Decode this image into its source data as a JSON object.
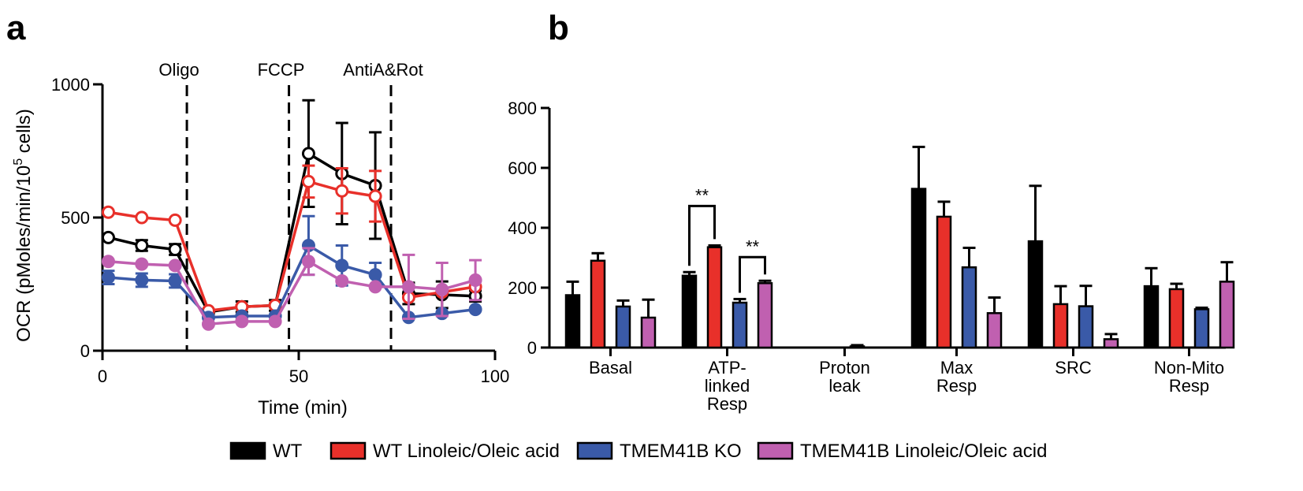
{
  "figure": {
    "panel_a_letter": "a",
    "panel_b_letter": "b"
  },
  "colors": {
    "WT": "#000000",
    "WT_LO": "#e8302a",
    "KO": "#3a5aa8",
    "KO_LO": "#c060b0"
  },
  "chart_data": [
    {
      "type": "line",
      "panel": "a",
      "xlabel": "Time (min)",
      "ylabel": "OCR (pMoles/min/10",
      "ylabel_sup": "5",
      "ylabel_end": " cells)",
      "xlim": [
        0,
        100
      ],
      "ylim": [
        0,
        1000
      ],
      "xticks": [
        "0",
        "50",
        "100"
      ],
      "xtick_values": [
        0,
        50,
        100
      ],
      "yticks": [
        "0",
        "500",
        "1000"
      ],
      "ytick_values": [
        0,
        500,
        1000
      ],
      "injections": [
        {
          "label": "Oligo",
          "x": 21.5
        },
        {
          "label": "FCCP",
          "x": 47.5
        },
        {
          "label": "AntiA&Rot",
          "x": 73.5
        }
      ],
      "x": [
        1.5,
        10,
        18.5,
        27,
        35.5,
        44,
        52.5,
        61,
        69.5,
        78,
        86.5,
        95
      ],
      "series": [
        {
          "name": "WT",
          "key": "WT",
          "marker": "open",
          "values": [
            425,
            395,
            380,
            145,
            165,
            170,
            740,
            665,
            620,
            215,
            210,
            205
          ],
          "errors": [
            0,
            20,
            20,
            10,
            20,
            20,
            200,
            190,
            200,
            40,
            50,
            20
          ]
        },
        {
          "name": "WT Linoleic/Oleic acid",
          "key": "WT_LO",
          "marker": "open",
          "values": [
            520,
            500,
            490,
            150,
            165,
            170,
            635,
            600,
            580,
            200,
            220,
            240
          ],
          "errors": [
            0,
            0,
            0,
            0,
            0,
            0,
            60,
            85,
            95,
            0,
            0,
            0
          ]
        },
        {
          "name": "TMEM41B KO",
          "key": "KO",
          "marker": "filled",
          "values": [
            275,
            265,
            262,
            125,
            130,
            130,
            395,
            320,
            285,
            125,
            140,
            155
          ],
          "errors": [
            25,
            25,
            25,
            0,
            0,
            0,
            110,
            75,
            45,
            0,
            0,
            0
          ]
        },
        {
          "name": "TMEM41B Linoleic/Oleic acid",
          "key": "KO_LO",
          "marker": "filled",
          "values": [
            335,
            325,
            320,
            100,
            110,
            110,
            335,
            262,
            240,
            240,
            230,
            265
          ],
          "errors": [
            0,
            0,
            0,
            0,
            0,
            0,
            50,
            0,
            0,
            120,
            100,
            75
          ]
        }
      ]
    },
    {
      "type": "bar",
      "panel": "b",
      "ylim": [
        0,
        800
      ],
      "yticks": [
        "0",
        "200",
        "400",
        "600",
        "800"
      ],
      "ytick_values": [
        0,
        200,
        400,
        600,
        800
      ],
      "categories": [
        [
          "Basal"
        ],
        [
          "ATP-",
          "linked",
          "Resp"
        ],
        [
          "Proton",
          "leak"
        ],
        [
          "Max",
          "Resp"
        ],
        [
          "SRC"
        ],
        [
          "Non-Mito",
          "Resp"
        ]
      ],
      "series": [
        {
          "name": "WT",
          "key": "WT",
          "values": [
            175,
            240,
            0,
            530,
            355,
            205
          ],
          "errors": [
            45,
            12,
            0,
            140,
            185,
            60
          ]
        },
        {
          "name": "WT Linoleic/Oleic acid",
          "key": "WT_LO",
          "values": [
            290,
            335,
            0,
            437,
            145,
            195
          ],
          "errors": [
            25,
            6,
            0,
            50,
            60,
            18
          ]
        },
        {
          "name": "TMEM41B KO",
          "key": "KO",
          "values": [
            137,
            150,
            4,
            268,
            138,
            128
          ],
          "errors": [
            20,
            12,
            4,
            65,
            68,
            5
          ]
        },
        {
          "name": "TMEM41B Linoleic/Oleic acid",
          "key": "KO_LO",
          "values": [
            100,
            215,
            0,
            115,
            28,
            220
          ],
          "errors": [
            60,
            8,
            0,
            52,
            17,
            65
          ]
        }
      ],
      "significance": [
        {
          "category": 1,
          "pair": [
            0,
            1
          ],
          "label": "**"
        },
        {
          "category": 1,
          "pair": [
            2,
            3
          ],
          "label": "**"
        }
      ]
    }
  ],
  "legend": [
    {
      "key": "WT",
      "label": "WT"
    },
    {
      "key": "WT_LO",
      "label": "WT Linoleic/Oleic acid"
    },
    {
      "key": "KO",
      "label": "TMEM41B KO"
    },
    {
      "key": "KO_LO",
      "label": "TMEM41B Linoleic/Oleic acid"
    }
  ]
}
